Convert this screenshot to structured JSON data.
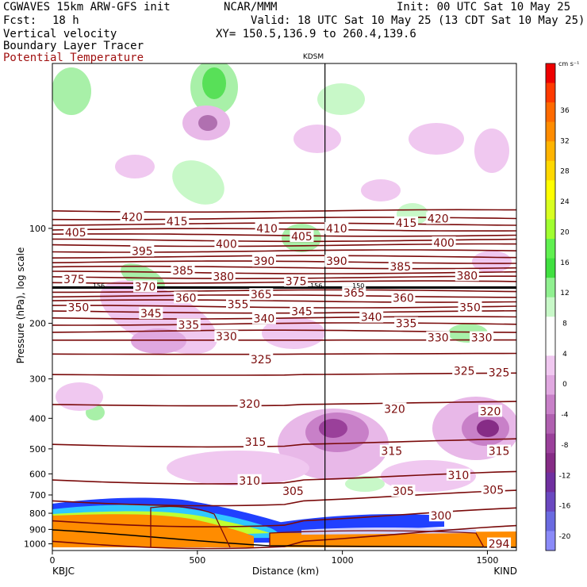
{
  "header": {
    "model": "CGWAVES 15km ARW-GFS init",
    "org": "NCAR/MMM",
    "init": "Init: 00 UTC Sat 10 May 25",
    "fcst_label": "Fcst:",
    "fcst_value": "18 h",
    "valid": "Valid: 18 UTC Sat 10 May 25 (13 CDT Sat 10 May 25)",
    "field1": "Vertical velocity",
    "field2": "Boundary Layer Tracer",
    "field3": "Potential Temperature",
    "xy": "XY= 150.5,136.9 to 260.4,139.6",
    "station_mid": "KDSM",
    "station_left": "KBJC",
    "station_right": "KIND"
  },
  "colors": {
    "theta_contour": "#7a0a0a",
    "boundary_layer": "#ff8c00",
    "tropopause": "#000000"
  },
  "chart_data": {
    "type": "cross-section",
    "xlabel": "Distance (km)",
    "ylabel": "Pressure (hPa), log scale",
    "xlim": [
      0,
      1600
    ],
    "ylim": [
      1050,
      30
    ],
    "y_scale": "log",
    "xticks": [
      0,
      500,
      1000,
      1500
    ],
    "yticks": [
      100,
      200,
      300,
      400,
      500,
      600,
      700,
      800,
      900,
      1000
    ],
    "station_line_km": 940,
    "theta_labels": [
      {
        "t": "420",
        "x": 275,
        "p": 92
      },
      {
        "t": "415",
        "x": 430,
        "p": 95
      },
      {
        "t": "410",
        "x": 740,
        "p": 100
      },
      {
        "t": "405",
        "x": 80,
        "p": 103
      },
      {
        "t": "405",
        "x": 860,
        "p": 106
      },
      {
        "t": "410",
        "x": 980,
        "p": 100
      },
      {
        "t": "415",
        "x": 1220,
        "p": 96
      },
      {
        "t": "420",
        "x": 1330,
        "p": 93
      },
      {
        "t": "395",
        "x": 310,
        "p": 118
      },
      {
        "t": "400",
        "x": 600,
        "p": 112
      },
      {
        "t": "400",
        "x": 1350,
        "p": 111
      },
      {
        "t": "390",
        "x": 730,
        "p": 127
      },
      {
        "t": "390",
        "x": 980,
        "p": 127
      },
      {
        "t": "385",
        "x": 450,
        "p": 136
      },
      {
        "t": "380",
        "x": 590,
        "p": 142
      },
      {
        "t": "385",
        "x": 1200,
        "p": 132
      },
      {
        "t": "380",
        "x": 1430,
        "p": 141
      },
      {
        "t": "375",
        "x": 75,
        "p": 145
      },
      {
        "t": "370",
        "x": 320,
        "p": 153
      },
      {
        "t": "375",
        "x": 840,
        "p": 147
      },
      {
        "t": "365",
        "x": 720,
        "p": 162
      },
      {
        "t": "365",
        "x": 1040,
        "p": 160
      },
      {
        "t": "360",
        "x": 460,
        "p": 166
      },
      {
        "t": "360",
        "x": 1210,
        "p": 166
      },
      {
        "t": "355",
        "x": 640,
        "p": 174
      },
      {
        "t": "350",
        "x": 90,
        "p": 178
      },
      {
        "t": "350",
        "x": 1440,
        "p": 178
      },
      {
        "t": "345",
        "x": 340,
        "p": 186
      },
      {
        "t": "345",
        "x": 860,
        "p": 183
      },
      {
        "t": "340",
        "x": 730,
        "p": 193
      },
      {
        "t": "340",
        "x": 1100,
        "p": 191
      },
      {
        "t": "335",
        "x": 470,
        "p": 202
      },
      {
        "t": "335",
        "x": 1220,
        "p": 200
      },
      {
        "t": "330",
        "x": 600,
        "p": 220
      },
      {
        "t": "330",
        "x": 1330,
        "p": 222
      },
      {
        "t": "330",
        "x": 1480,
        "p": 222
      },
      {
        "t": "325",
        "x": 720,
        "p": 260
      },
      {
        "t": "325",
        "x": 1420,
        "p": 283
      },
      {
        "t": "325",
        "x": 1540,
        "p": 286
      },
      {
        "t": "320",
        "x": 680,
        "p": 360
      },
      {
        "t": "320",
        "x": 1180,
        "p": 373
      },
      {
        "t": "320",
        "x": 1510,
        "p": 380
      },
      {
        "t": "315",
        "x": 700,
        "p": 475
      },
      {
        "t": "315",
        "x": 1170,
        "p": 508
      },
      {
        "t": "315",
        "x": 1540,
        "p": 508
      },
      {
        "t": "310",
        "x": 680,
        "p": 630
      },
      {
        "t": "310",
        "x": 1400,
        "p": 605
      },
      {
        "t": "305",
        "x": 830,
        "p": 680
      },
      {
        "t": "305",
        "x": 1210,
        "p": 680
      },
      {
        "t": "305",
        "x": 1520,
        "p": 675
      },
      {
        "t": "300",
        "x": 1340,
        "p": 815
      },
      {
        "t": "294",
        "x": 1540,
        "p": 1000
      }
    ],
    "small_labels": [
      {
        "t": "156",
        "x": 160,
        "p": 152
      },
      {
        "t": "156",
        "x": 910,
        "p": 152
      },
      {
        "t": "150",
        "x": 1055,
        "p": 152
      }
    ],
    "colorbar": {
      "unit": "cm s⁻¹",
      "labels": [
        "36",
        "32",
        "28",
        "24",
        "20",
        "16",
        "12",
        "8",
        "4",
        "0",
        "-4",
        "-8",
        "-12",
        "-16",
        "-20"
      ],
      "colors": [
        "#ee0000",
        "#ff3a00",
        "#ff6a00",
        "#ff8c00",
        "#ffb400",
        "#ffd800",
        "#ffff00",
        "#d8ff20",
        "#a0ff30",
        "#60f050",
        "#40e040",
        "#90f090",
        "#c8f8c8",
        "#ffffff",
        "#ffffff",
        "#f0c8f0",
        "#e0a8e0",
        "#c880c8",
        "#b060b0",
        "#9a409a",
        "#862c86",
        "#7030a0",
        "#6a48c0",
        "#6a6ae0",
        "#8a8af8"
      ]
    }
  }
}
